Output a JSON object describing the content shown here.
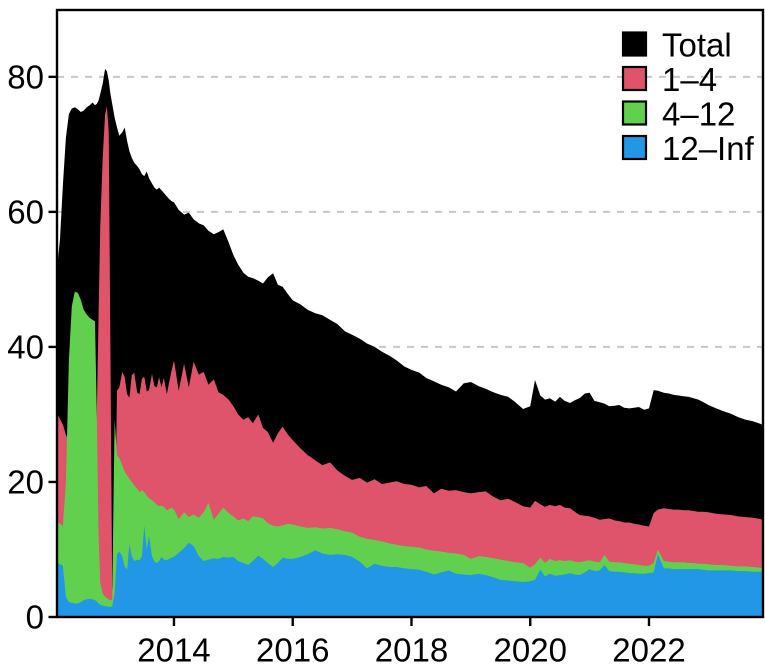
{
  "figure": {
    "background": "#ffffff",
    "axis_color": "#000000",
    "tick_font_px": 33
  },
  "chart_data": {
    "type": "area",
    "title": "",
    "xlabel": "",
    "ylabel": "",
    "x_domain": [
      2012.03,
      2023.92
    ],
    "ylim": [
      0,
      89.9
    ],
    "y_ticks": [
      0,
      20,
      40,
      60,
      80
    ],
    "x_ticks": [
      2014,
      2016,
      2018,
      2020,
      2022
    ],
    "grid": {
      "show": true,
      "at": [
        20,
        40,
        60,
        80
      ],
      "color": "#c8c8c8",
      "style": "dashed"
    },
    "legend": {
      "position": "top-right",
      "entries": [
        "Total",
        "1–4",
        "4–12",
        "12–Inf"
      ]
    },
    "x": [
      2012.03,
      2012.08,
      2012.13,
      2012.18,
      2012.23,
      2012.28,
      2012.33,
      2012.38,
      2012.43,
      2012.48,
      2012.53,
      2012.58,
      2012.63,
      2012.67,
      2012.7,
      2012.73,
      2012.76,
      2012.8,
      2012.84,
      2012.87,
      2012.9,
      2012.93,
      2012.96,
      2013,
      2013.04,
      2013.08,
      2013.13,
      2013.17,
      2013.21,
      2013.25,
      2013.29,
      2013.33,
      2013.38,
      2013.42,
      2013.46,
      2013.5,
      2013.54,
      2013.58,
      2013.63,
      2013.67,
      2013.71,
      2013.75,
      2013.79,
      2013.83,
      2013.88,
      2013.92,
      2013.96,
      2014,
      2014.08,
      2014.17,
      2014.25,
      2014.33,
      2014.42,
      2014.5,
      2014.58,
      2014.67,
      2014.75,
      2014.83,
      2014.92,
      2015,
      2015.08,
      2015.17,
      2015.25,
      2015.33,
      2015.42,
      2015.5,
      2015.58,
      2015.67,
      2015.75,
      2015.83,
      2015.92,
      2016,
      2016.13,
      2016.25,
      2016.38,
      2016.5,
      2016.63,
      2016.75,
      2016.88,
      2017,
      2017.13,
      2017.25,
      2017.38,
      2017.5,
      2017.63,
      2017.75,
      2017.88,
      2018,
      2018.13,
      2018.25,
      2018.38,
      2018.5,
      2018.63,
      2018.75,
      2018.88,
      2019,
      2019.13,
      2019.25,
      2019.38,
      2019.5,
      2019.63,
      2019.75,
      2019.88,
      2020,
      2020.08,
      2020.17,
      2020.25,
      2020.33,
      2020.42,
      2020.5,
      2020.58,
      2020.67,
      2020.75,
      2020.83,
      2020.92,
      2021,
      2021.08,
      2021.17,
      2021.25,
      2021.33,
      2021.42,
      2021.5,
      2021.58,
      2021.67,
      2021.75,
      2021.83,
      2021.92,
      2022,
      2022.08,
      2022.15,
      2022.25,
      2022.33,
      2022.42,
      2022.5,
      2022.58,
      2022.67,
      2022.75,
      2022.83,
      2022.92,
      2023,
      2023.13,
      2023.25,
      2023.38,
      2023.5,
      2023.63,
      2023.75,
      2023.88,
      2023.92
    ],
    "series": [
      {
        "name": "Total",
        "color": "#000000",
        "values": [
          51.5,
          56,
          64,
          71,
          74.5,
          75.3,
          75.5,
          75.2,
          74.8,
          75,
          75.5,
          75.8,
          76.2,
          75.8,
          76,
          76.5,
          77.5,
          79,
          81.2,
          80.8,
          79.5,
          77.5,
          76,
          74,
          72.5,
          71.3,
          71.8,
          72.5,
          70.5,
          69,
          68,
          67.3,
          66.8,
          66.3,
          65.6,
          65.3,
          66,
          65,
          64.2,
          63.6,
          63.3,
          63.6,
          63.2,
          62.8,
          62.3,
          61.9,
          61.6,
          61.4,
          60.3,
          59.6,
          59.9,
          58.9,
          58.3,
          58,
          57.2,
          56.7,
          57,
          57.4,
          55.5,
          53.6,
          52.2,
          51,
          50.4,
          50.2,
          49.8,
          49.4,
          50.3,
          50.9,
          49.2,
          48.9,
          47.8,
          46.9,
          46.3,
          45.5,
          45,
          44.7,
          44,
          43.4,
          42.3,
          41.8,
          41.2,
          40.5,
          40,
          39.3,
          38.7,
          38,
          37.1,
          36.6,
          36.2,
          35.4,
          34.9,
          34.4,
          34,
          33.4,
          34.6,
          34.8,
          34.2,
          33.8,
          33.3,
          32.9,
          32.6,
          31.8,
          30.8,
          31.2,
          35.1,
          32.8,
          32.2,
          32.4,
          31.9,
          32.6,
          32,
          31.7,
          32.1,
          32.4,
          33.1,
          33.2,
          32,
          31.8,
          31.6,
          31.2,
          31.3,
          31.4,
          31,
          30.9,
          31,
          31.1,
          30.7,
          30.9,
          33.6,
          33.5,
          33.2,
          33.1,
          32.9,
          32.8,
          32.7,
          32.6,
          32.4,
          32.2,
          31.8,
          31.4,
          30.9,
          30.5,
          30.1,
          29.6,
          29.2,
          29,
          28.6,
          28.4
        ]
      },
      {
        "name": "1–4",
        "color": "#df536b",
        "values": [
          30.2,
          29.3,
          28.5,
          27,
          26,
          25.5,
          25,
          25,
          24.5,
          24.5,
          24,
          24,
          24,
          25,
          30,
          45,
          58,
          68,
          74.5,
          75.6,
          72,
          40,
          4,
          8,
          33.5,
          34,
          36.3,
          35.5,
          33,
          32.5,
          35.8,
          36.2,
          33.2,
          33,
          35.3,
          35.6,
          33.4,
          33.6,
          36,
          34.2,
          34,
          35.5,
          34,
          35.4,
          33,
          34.8,
          36.5,
          38,
          33.5,
          37.5,
          34,
          37.8,
          35.9,
          36.3,
          34.4,
          35.2,
          33.3,
          32.9,
          32.2,
          31.2,
          30,
          29.2,
          29.6,
          28.7,
          30,
          28,
          27.4,
          25.8,
          27.2,
          28.2,
          27,
          26.2,
          25,
          24,
          23.2,
          22.5,
          22.9,
          21.7,
          20.9,
          20.3,
          20.6,
          19.9,
          20.4,
          19.7,
          19.9,
          20.1,
          19.7,
          19.6,
          19.2,
          19.4,
          18.3,
          19,
          18.7,
          18.8,
          18.5,
          18.3,
          18.5,
          18.6,
          17.8,
          17.3,
          17.5,
          17,
          16.4,
          16.2,
          17.2,
          16.7,
          16.3,
          16.6,
          16.4,
          16.6,
          16.2,
          16.1,
          15.6,
          15.1,
          15,
          14.9,
          14.7,
          14.4,
          14.5,
          14.6,
          14.3,
          14.2,
          14,
          14,
          13.8,
          13.7,
          13.5,
          13.4,
          15.4,
          15.9,
          16.1,
          16,
          15.9,
          15.9,
          15.8,
          15.8,
          15.7,
          15.6,
          15.6,
          15.5,
          15.3,
          15.2,
          15.1,
          14.9,
          14.8,
          14.7,
          14.5,
          14.4
        ]
      },
      {
        "name": "4–12",
        "color": "#61d04f",
        "values": [
          14.1,
          13.8,
          13.5,
          20,
          38,
          46,
          48.2,
          48,
          47,
          45.5,
          44.8,
          44.3,
          44,
          43.8,
          30,
          12,
          5,
          3.5,
          3,
          2.8,
          2.6,
          2.5,
          2.5,
          29.2,
          24,
          23.5,
          22.5,
          21.5,
          21,
          20.5,
          20,
          19.5,
          19,
          18.5,
          18.8,
          18.5,
          18,
          17.6,
          17.3,
          17,
          16.6,
          16.4,
          16.5,
          16.3,
          15.8,
          16,
          16.2,
          15.9,
          14.5,
          15.5,
          14.8,
          15.2,
          14.7,
          15.5,
          16.9,
          14.4,
          15.3,
          16.2,
          15.4,
          14.9,
          14.3,
          14.6,
          14.2,
          14.9,
          14.8,
          14.6,
          13.9,
          13.5,
          13.4,
          13.6,
          13.8,
          13.7,
          13.4,
          13.2,
          13.3,
          13.1,
          13.2,
          13,
          12.7,
          12.5,
          11.9,
          11.6,
          11.4,
          11.2,
          10.9,
          10.7,
          10.5,
          10.4,
          10.3,
          10,
          9.8,
          9.7,
          9.5,
          9.4,
          9.2,
          8.6,
          9,
          8.9,
          8.7,
          8.5,
          8.3,
          8.1,
          8,
          7.3,
          7.8,
          8.8,
          8,
          8.6,
          8.3,
          8.4,
          8.3,
          8.4,
          8.2,
          8.1,
          8.3,
          8.4,
          8.2,
          8.1,
          9.2,
          8.2,
          8.1,
          8.1,
          8,
          7.9,
          7.8,
          7.7,
          7.6,
          7.6,
          8,
          10,
          8.3,
          8.2,
          8.1,
          8.1,
          8.1,
          8,
          8,
          7.9,
          7.9,
          7.8,
          7.7,
          7.7,
          7.6,
          7.5,
          7.5,
          7.4,
          7.3,
          7.3
        ]
      },
      {
        "name": "12–Inf",
        "color": "#2297e6",
        "values": [
          8,
          7.8,
          7.6,
          3,
          2.2,
          2.1,
          2,
          2,
          2.2,
          2.5,
          2.6,
          2.7,
          2.6,
          2.5,
          2.3,
          2,
          1.8,
          1.7,
          1.6,
          1.6,
          1.5,
          1.5,
          1.6,
          3.5,
          9.3,
          9.7,
          9,
          7.5,
          7,
          10.8,
          9,
          8.3,
          8.5,
          8.4,
          9,
          13.5,
          10,
          12,
          9,
          8.2,
          8,
          8.3,
          8.9,
          8.5,
          8.4,
          8.6,
          8.8,
          8.9,
          9.5,
          10.2,
          11,
          10.5,
          9,
          8.3,
          8.5,
          8.7,
          8.6,
          8.9,
          8.8,
          8.9,
          8.3,
          8,
          7.7,
          8.3,
          9.1,
          8.6,
          8,
          7.4,
          8,
          8.8,
          8.6,
          8.6,
          8.9,
          9.3,
          9.9,
          9.4,
          9.2,
          9.3,
          9.2,
          8.9,
          8.2,
          7.2,
          7.9,
          7.6,
          7.4,
          7.4,
          7.2,
          7.1,
          7,
          6.7,
          6.3,
          6.6,
          6.9,
          6.4,
          6.3,
          6.2,
          6.4,
          6.2,
          5.9,
          5.5,
          5.4,
          5.3,
          5.2,
          5.3,
          5.5,
          7,
          6,
          6.4,
          6.1,
          6.2,
          6.3,
          6.5,
          6.3,
          6.2,
          6.6,
          7.1,
          6.8,
          6.9,
          7.7,
          6.8,
          6.7,
          6.7,
          6.6,
          6.5,
          6.5,
          6.4,
          6.4,
          6.5,
          6.6,
          9.3,
          7.2,
          7.2,
          7.1,
          7.1,
          7.1,
          7.1,
          7.1,
          7.1,
          7,
          6.9,
          6.9,
          6.9,
          6.9,
          6.8,
          6.8,
          6.7,
          6.7,
          6.7
        ]
      }
    ]
  }
}
